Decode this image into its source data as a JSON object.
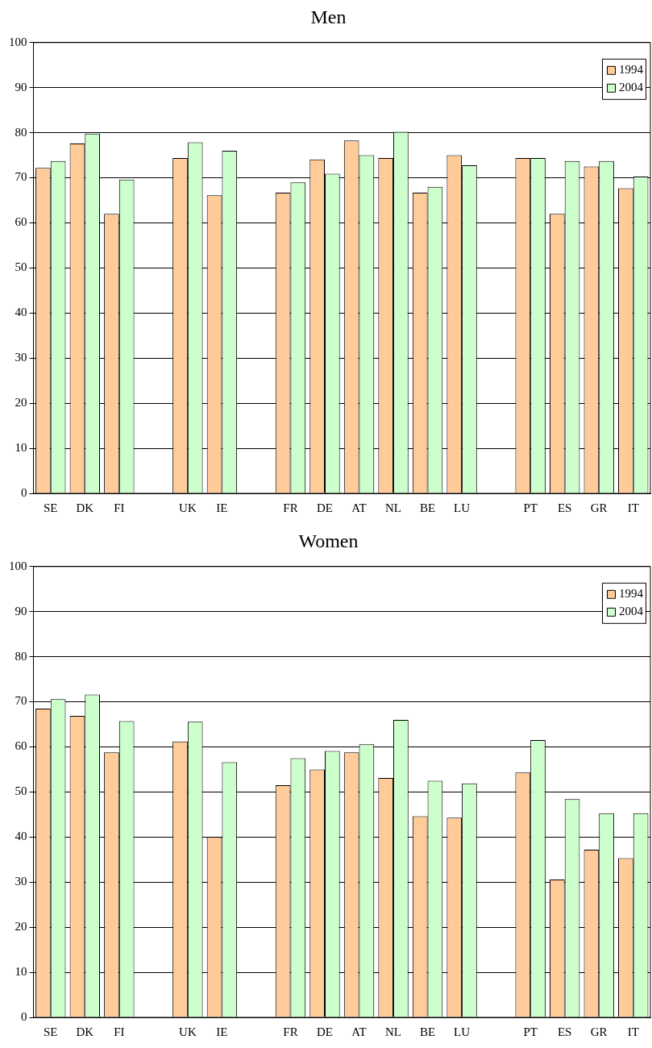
{
  "chart_data": [
    {
      "type": "bar",
      "title": "Men",
      "categories": [
        "SE",
        "DK",
        "FI",
        null,
        "UK",
        "IE",
        null,
        "FR",
        "DE",
        "AT",
        "NL",
        "BE",
        "LU",
        null,
        "PT",
        "ES",
        "GR",
        "IT"
      ],
      "series": [
        {
          "name": "1994",
          "color": "#ffcc99",
          "values": [
            72.2,
            77.6,
            62,
            null,
            74.4,
            66.1,
            null,
            66.7,
            74.1,
            78.3,
            74.4,
            66.7,
            75,
            null,
            74.4,
            62,
            72.5,
            67.7
          ]
        },
        {
          "name": "2004",
          "color": "#ccffcc",
          "values": [
            73.7,
            79.8,
            69.6,
            null,
            77.9,
            76,
            null,
            69,
            70.9,
            75,
            80.2,
            68,
            72.8,
            null,
            74.4,
            73.7,
            73.7,
            70.3
          ]
        }
      ],
      "ylim": [
        0,
        100
      ],
      "yticks": [
        0,
        10,
        20,
        30,
        40,
        50,
        60,
        70,
        80,
        90,
        100
      ],
      "grid": "y",
      "legend": "top right"
    },
    {
      "type": "bar",
      "title": "Women",
      "categories": [
        "SE",
        "DK",
        "FI",
        null,
        "UK",
        "IE",
        null,
        "FR",
        "DE",
        "AT",
        "NL",
        "BE",
        "LU",
        null,
        "PT",
        "ES",
        "GR",
        "IT"
      ],
      "series": [
        {
          "name": "1994",
          "color": "#ffcc99",
          "values": [
            68.5,
            66.9,
            58.8,
            null,
            61.2,
            40,
            null,
            51.5,
            55,
            58.8,
            53.1,
            44.6,
            44.3,
            null,
            54.3,
            30.6,
            37.2,
            35.3
          ]
        },
        {
          "name": "2004",
          "color": "#ccffcc",
          "values": [
            70.6,
            71.6,
            65.7,
            null,
            65.6,
            56.6,
            null,
            57.5,
            59.1,
            60.6,
            66,
            52.5,
            51.9,
            null,
            61.5,
            48.4,
            45.3,
            45.3
          ]
        }
      ],
      "ylim": [
        0,
        100
      ],
      "yticks": [
        0,
        10,
        20,
        30,
        40,
        50,
        60,
        70,
        80,
        90,
        100
      ],
      "grid": "y",
      "legend": "top right"
    }
  ]
}
